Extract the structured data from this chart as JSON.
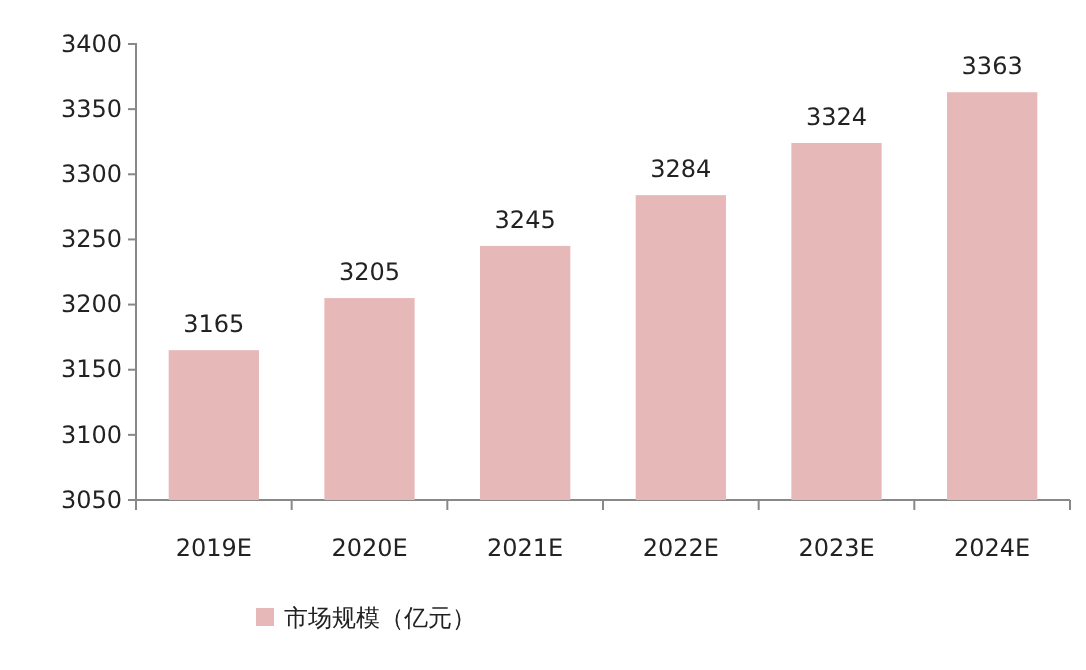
{
  "chart_data": {
    "type": "bar",
    "categories": [
      "2019E",
      "2020E",
      "2021E",
      "2022E",
      "2023E",
      "2024E"
    ],
    "series": [
      {
        "name": "市场规模（亿元）",
        "color": "#e6b9b8",
        "values": [
          3165,
          3205,
          3245,
          3284,
          3324,
          3363
        ]
      }
    ],
    "ylim": [
      3050,
      3400
    ],
    "yticks": [
      3050,
      3100,
      3150,
      3200,
      3250,
      3300,
      3350,
      3400
    ],
    "data_labels": true,
    "legend": "bottom",
    "grid": false
  }
}
